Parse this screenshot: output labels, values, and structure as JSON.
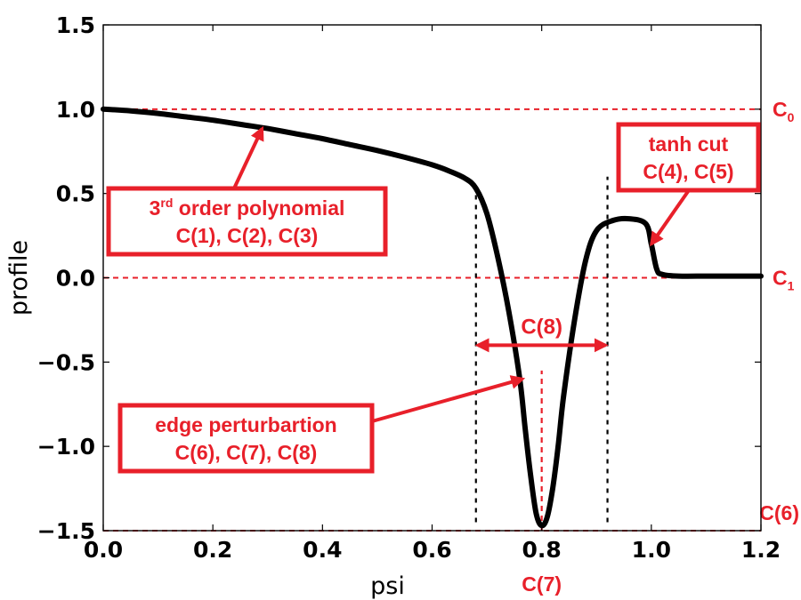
{
  "chart_data": {
    "type": "line",
    "xlabel": "psi",
    "ylabel": "profile",
    "xlim": [
      0.0,
      1.2
    ],
    "ylim": [
      -1.5,
      1.5
    ],
    "xticks": [
      0.0,
      0.2,
      0.4,
      0.6,
      0.8,
      1.0,
      1.2
    ],
    "xtick_labels": [
      "0.0",
      "0.2",
      "0.4",
      "0.6",
      "0.8",
      "1.0",
      "1.2"
    ],
    "yticks": [
      -1.5,
      -1.0,
      -0.5,
      0.0,
      0.5,
      1.0,
      1.5
    ],
    "ytick_labels": [
      "−1.5",
      "−1.0",
      "−0.5",
      "0.0",
      "0.5",
      "1.0",
      "1.5"
    ],
    "grid": false,
    "series": [
      {
        "color": "#000000",
        "x": [
          0.0,
          0.05,
          0.1,
          0.15,
          0.2,
          0.25,
          0.3,
          0.35,
          0.4,
          0.45,
          0.5,
          0.55,
          0.6,
          0.63,
          0.66,
          0.68,
          0.7,
          0.72,
          0.74,
          0.76,
          0.77,
          0.78,
          0.79,
          0.8,
          0.81,
          0.82,
          0.83,
          0.84,
          0.86,
          0.88,
          0.9,
          0.93,
          0.96,
          0.99,
          1.0,
          1.01,
          1.02,
          1.05,
          1.1,
          1.15,
          1.2
        ],
        "y": [
          1.0,
          0.99,
          0.975,
          0.955,
          0.935,
          0.91,
          0.885,
          0.855,
          0.825,
          0.79,
          0.755,
          0.715,
          0.67,
          0.635,
          0.59,
          0.53,
          0.38,
          0.12,
          -0.2,
          -0.6,
          -0.9,
          -1.18,
          -1.4,
          -1.47,
          -1.42,
          -1.25,
          -1.0,
          -0.7,
          -0.25,
          0.1,
          0.28,
          0.34,
          0.35,
          0.32,
          0.2,
          0.05,
          0.02,
          0.01,
          0.01,
          0.01,
          0.01
        ]
      }
    ],
    "reference_lines": [
      {
        "axis": "y",
        "value": 1.0,
        "label": "C",
        "sub": "0",
        "color": "#e8202a",
        "style": "dashed"
      },
      {
        "axis": "y",
        "value": 0.0,
        "label": "C",
        "sub": "1",
        "color": "#e8202a",
        "style": "dashed"
      },
      {
        "axis": "y",
        "value": -1.5,
        "label": "C(6)",
        "color": "#e8202a",
        "style": "dashed"
      },
      {
        "axis": "x",
        "value": 0.8,
        "label": "C(7)",
        "color": "#e8202a",
        "style": "dashed",
        "y_range": [
          -1.5,
          -0.55
        ]
      },
      {
        "axis": "x",
        "value": 0.68,
        "color": "#000000",
        "style": "dashed",
        "y_range": [
          -1.45,
          0.58
        ]
      },
      {
        "axis": "x",
        "value": 0.92,
        "color": "#000000",
        "style": "dashed",
        "y_range": [
          -1.45,
          0.6
        ]
      }
    ],
    "annotations": [
      {
        "id": "poly",
        "lines": [
          "3rd order polynomial",
          "C(1), C(2), C(3)"
        ],
        "superscript": "rd",
        "arrow_to": [
          0.29,
          0.885
        ]
      },
      {
        "id": "tanh",
        "lines": [
          "tanh cut",
          "C(4), C(5)"
        ],
        "arrow_to": [
          1.0,
          0.2
        ]
      },
      {
        "id": "edge",
        "lines": [
          "edge perturbartion",
          "C(6), C(7), C(8)"
        ],
        "arrow_to": [
          0.765,
          -0.6
        ]
      },
      {
        "id": "width",
        "label": "C(8)",
        "span": [
          0.68,
          0.92
        ],
        "at_y": -0.4
      }
    ]
  }
}
